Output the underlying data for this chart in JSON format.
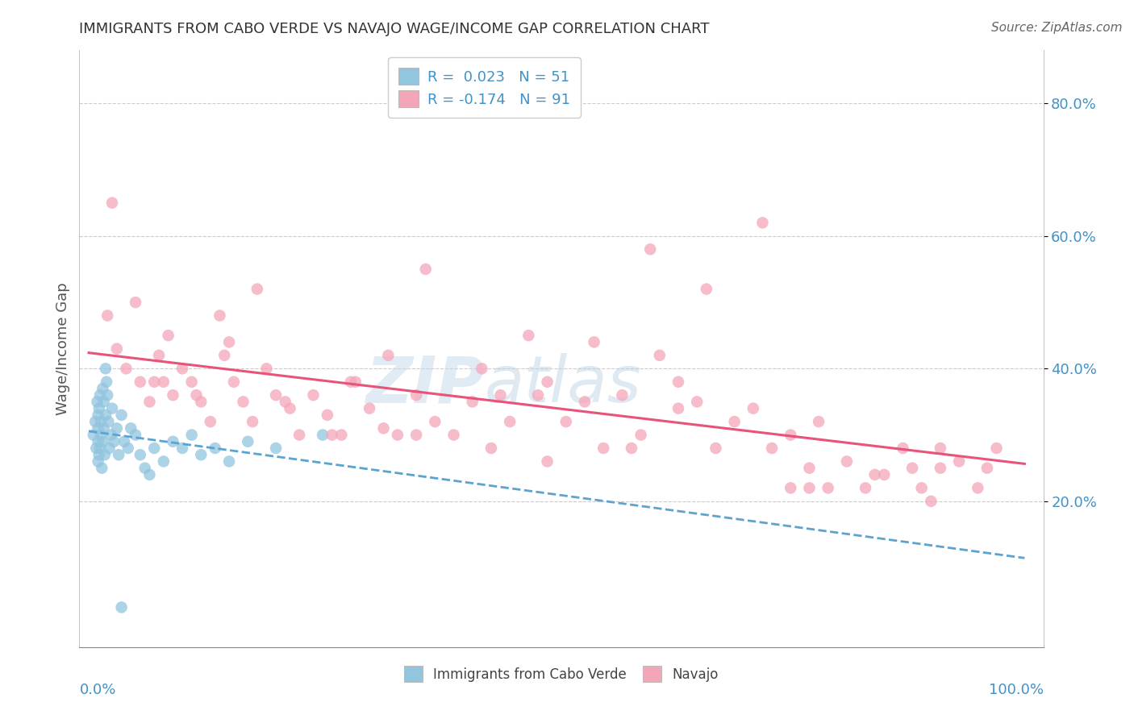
{
  "title": "IMMIGRANTS FROM CABO VERDE VS NAVAJO WAGE/INCOME GAP CORRELATION CHART",
  "source": "Source: ZipAtlas.com",
  "ylabel": "Wage/Income Gap",
  "watermark_zip": "ZIP",
  "watermark_atlas": "atlas",
  "blue_color": "#92c5de",
  "pink_color": "#f4a6b8",
  "blue_line_color": "#5ba3d0",
  "pink_line_color": "#e8537a",
  "blue_label": "Immigrants from Cabo Verde",
  "pink_label": "Navajo",
  "legend_r1_text": "R =  0.023   N = 51",
  "legend_r2_text": "R = -0.174   N = 91",
  "xlim": [
    -0.01,
    1.02
  ],
  "ylim": [
    -0.02,
    0.88
  ],
  "ytick_vals": [
    0.2,
    0.4,
    0.6,
    0.8
  ],
  "ytick_labels": [
    "20.0%",
    "40.0%",
    "60.0%",
    "80.0%"
  ],
  "blue_x": [
    0.005,
    0.007,
    0.008,
    0.009,
    0.01,
    0.01,
    0.01,
    0.01,
    0.011,
    0.011,
    0.012,
    0.012,
    0.013,
    0.013,
    0.014,
    0.015,
    0.015,
    0.016,
    0.016,
    0.017,
    0.018,
    0.018,
    0.019,
    0.02,
    0.021,
    0.022,
    0.024,
    0.025,
    0.027,
    0.03,
    0.032,
    0.035,
    0.038,
    0.042,
    0.045,
    0.05,
    0.055,
    0.06,
    0.065,
    0.07,
    0.08,
    0.09,
    0.1,
    0.11,
    0.12,
    0.135,
    0.15,
    0.17,
    0.2,
    0.25,
    0.035
  ],
  "blue_y": [
    0.3,
    0.32,
    0.28,
    0.35,
    0.33,
    0.29,
    0.26,
    0.31,
    0.34,
    0.27,
    0.36,
    0.28,
    0.3,
    0.32,
    0.25,
    0.37,
    0.29,
    0.31,
    0.35,
    0.27,
    0.33,
    0.4,
    0.38,
    0.36,
    0.32,
    0.28,
    0.3,
    0.34,
    0.29,
    0.31,
    0.27,
    0.33,
    0.29,
    0.28,
    0.31,
    0.3,
    0.27,
    0.25,
    0.24,
    0.28,
    0.26,
    0.29,
    0.28,
    0.3,
    0.27,
    0.28,
    0.26,
    0.29,
    0.28,
    0.3,
    0.04
  ],
  "pink_x": [
    0.02,
    0.03,
    0.04,
    0.055,
    0.065,
    0.075,
    0.08,
    0.085,
    0.09,
    0.1,
    0.11,
    0.12,
    0.13,
    0.145,
    0.155,
    0.165,
    0.175,
    0.19,
    0.2,
    0.215,
    0.225,
    0.24,
    0.255,
    0.27,
    0.285,
    0.3,
    0.315,
    0.33,
    0.35,
    0.37,
    0.39,
    0.41,
    0.43,
    0.45,
    0.47,
    0.49,
    0.51,
    0.53,
    0.55,
    0.57,
    0.59,
    0.61,
    0.63,
    0.65,
    0.67,
    0.69,
    0.71,
    0.73,
    0.75,
    0.77,
    0.79,
    0.81,
    0.83,
    0.85,
    0.87,
    0.89,
    0.91,
    0.93,
    0.95,
    0.97,
    0.05,
    0.15,
    0.18,
    0.28,
    0.32,
    0.36,
    0.42,
    0.48,
    0.54,
    0.6,
    0.66,
    0.72,
    0.78,
    0.84,
    0.9,
    0.96,
    0.07,
    0.14,
    0.21,
    0.35,
    0.49,
    0.63,
    0.77,
    0.91,
    0.025,
    0.115,
    0.26,
    0.44,
    0.58,
    0.75,
    0.88
  ],
  "pink_y": [
    0.48,
    0.43,
    0.4,
    0.38,
    0.35,
    0.42,
    0.38,
    0.45,
    0.36,
    0.4,
    0.38,
    0.35,
    0.32,
    0.42,
    0.38,
    0.35,
    0.32,
    0.4,
    0.36,
    0.34,
    0.3,
    0.36,
    0.33,
    0.3,
    0.38,
    0.34,
    0.31,
    0.3,
    0.36,
    0.32,
    0.3,
    0.35,
    0.28,
    0.32,
    0.45,
    0.38,
    0.32,
    0.35,
    0.28,
    0.36,
    0.3,
    0.42,
    0.38,
    0.35,
    0.28,
    0.32,
    0.34,
    0.28,
    0.3,
    0.25,
    0.22,
    0.26,
    0.22,
    0.24,
    0.28,
    0.22,
    0.25,
    0.26,
    0.22,
    0.28,
    0.5,
    0.44,
    0.52,
    0.38,
    0.42,
    0.55,
    0.4,
    0.36,
    0.44,
    0.58,
    0.52,
    0.62,
    0.32,
    0.24,
    0.2,
    0.25,
    0.38,
    0.48,
    0.35,
    0.3,
    0.26,
    0.34,
    0.22,
    0.28,
    0.65,
    0.36,
    0.3,
    0.36,
    0.28,
    0.22,
    0.25
  ]
}
